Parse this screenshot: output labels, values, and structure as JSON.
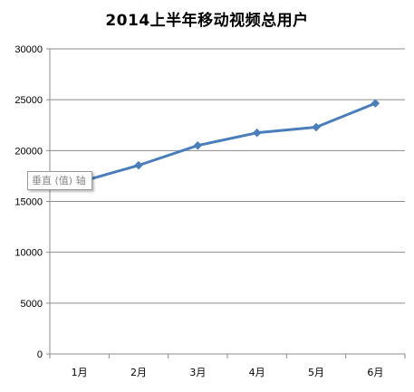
{
  "chart_data": {
    "type": "line",
    "title": "2014上半年移动视频总用户",
    "xlabel": "",
    "ylabel": "",
    "categories": [
      "1月",
      "2月",
      "3月",
      "4月",
      "5月",
      "6月"
    ],
    "yticks": [
      "0",
      "5000",
      "10000",
      "15000",
      "20000",
      "25000",
      "30000"
    ],
    "ylim": [
      0,
      30000
    ],
    "grid": true,
    "legend": "none",
    "series": [
      {
        "values": [
          16900,
          18550,
          20500,
          21750,
          22300,
          24650
        ],
        "color": "#4a7ebb",
        "marker": "diamond"
      }
    ],
    "tooltip": "垂直 (值) 轴"
  }
}
